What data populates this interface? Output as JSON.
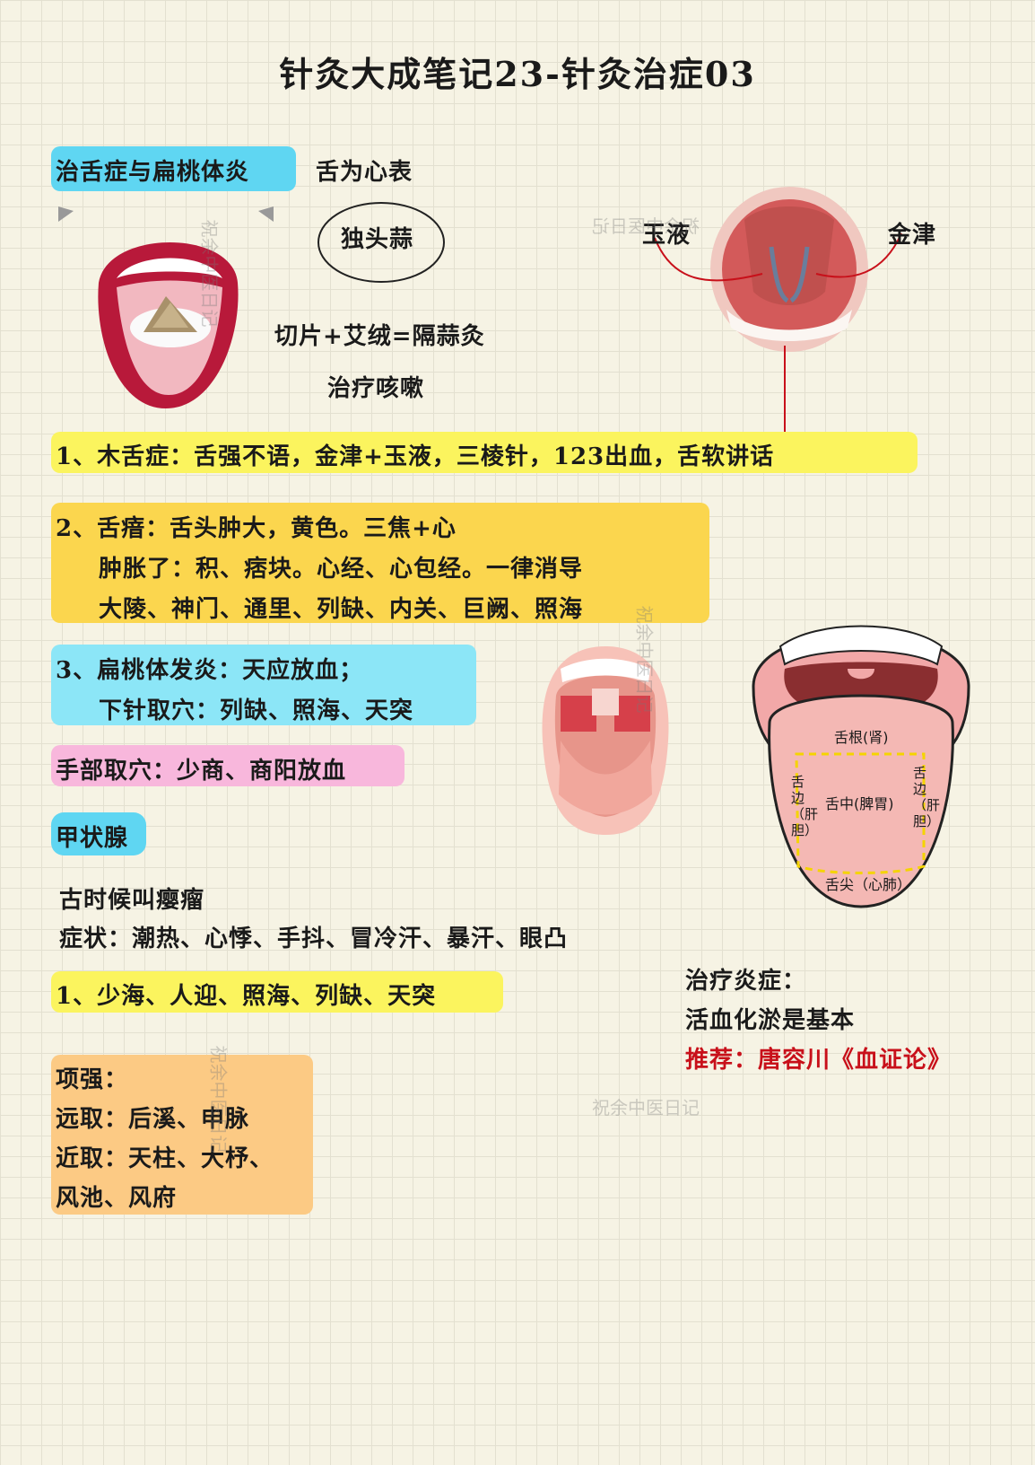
{
  "title": "针灸大成笔记23-针灸治症03",
  "section1": {
    "heading": "治舌症与扁桃体炎",
    "note": "舌为心表"
  },
  "garlic": {
    "label": "独头蒜",
    "method": "切片+艾绒=隔蒜灸",
    "use": "治疗咳嗽"
  },
  "palate": {
    "left_label": "玉液",
    "right_label": "金津"
  },
  "item1": "1、木舌症：舌强不语，金津+玉液，三棱针，123出血，舌软讲话",
  "item2": {
    "lines": [
      "2、舌瘖：舌头肿大，黄色。三焦+心",
      "肿胀了：积、痞块。心经、心包经。一律消导",
      "大陵、神门、通里、列缺、内关、巨阙、照海"
    ]
  },
  "item3": {
    "lines": [
      "3、扁桃体发炎：天应放血；",
      "下针取穴：列缺、照海、天突"
    ]
  },
  "hand": "手部取穴：少商、商阳放血",
  "tongue_map": {
    "root": "舌根(肾)",
    "center": "舌中(脾胃)",
    "left_edge": "舌边（肝胆）",
    "right_edge": "舌边（肝胆）",
    "tip": "舌尖（心肺）"
  },
  "thyroid": {
    "heading": "甲状腺",
    "ancient": "古时候叫瘿瘤",
    "symptoms": "症状：潮热、心悸、手抖、冒冷汗、暴汗、眼凸",
    "item1": "1、少海、人迎、照海、列缺、天突"
  },
  "inflammation": {
    "line1": "治疗炎症：",
    "line2": "活血化淤是基本",
    "line3": "推荐：唐容川《血证论》"
  },
  "neck": {
    "lines": [
      "项强：",
      "远取：后溪、申脉",
      "近取：天柱、大杼、",
      "风池、风府"
    ]
  },
  "watermark": "祝余中医日记",
  "colors": {
    "cyan": "#5fd6f2",
    "yellow": "#fbf45e",
    "gold": "#fbd64e",
    "light_cyan": "#8ce6f7",
    "pink": "#f8b7dc",
    "orange": "#fcca84",
    "red_text": "#c8101a"
  }
}
